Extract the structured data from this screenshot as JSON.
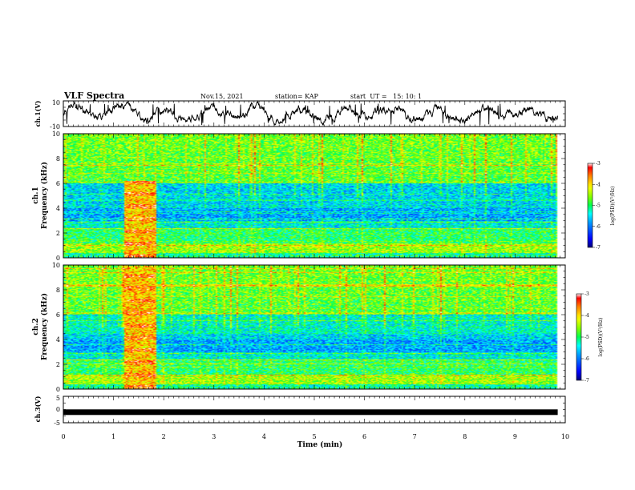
{
  "header": {
    "title": "VLF Spectra",
    "date": "Nov.15, 2021",
    "station": "station= KAP",
    "start": "start  UT =   15: 10: 1"
  },
  "chart_data": [
    {
      "type": "line",
      "panel": "ch1-waveform",
      "ylabel": "ch.1(V)",
      "ylim": [
        -10,
        10
      ],
      "yticks": [
        "10",
        "-10"
      ],
      "description_values": "noise waveform mostly between -6 and +6 V"
    },
    {
      "type": "heatmap",
      "panel": "ch1-spectrogram",
      "ylabel_line1": "ch.1",
      "ylabel_line2": "Frequency (kHz)",
      "ylim": [
        0,
        10
      ],
      "yticks": [
        "0",
        "2",
        "4",
        "6",
        "8",
        "10"
      ],
      "colorbar": {
        "label": "log(PSD)(V²/Hz)",
        "range": [
          -7,
          -3
        ],
        "ticks": [
          "-3",
          "-4",
          "-5",
          "-6",
          "-7"
        ]
      },
      "burst_minutes": [
        1.2,
        1.85
      ],
      "burst_top_khz": 6.2
    },
    {
      "type": "heatmap",
      "panel": "ch2-spectrogram",
      "ylabel_line1": "ch.2",
      "ylabel_line2": "Frequency (kHz)",
      "ylim": [
        0,
        10
      ],
      "yticks": [
        "0",
        "2",
        "4",
        "6",
        "8",
        "10"
      ],
      "colorbar": {
        "label": "log(PSD)(V²/Hz)",
        "range": [
          -7,
          -3
        ],
        "ticks": [
          "-3",
          "-4",
          "-5",
          "-6",
          "-7"
        ]
      },
      "burst_minutes": [
        1.2,
        1.85
      ],
      "burst_top_khz": 10
    },
    {
      "type": "line",
      "panel": "ch3-waveform",
      "ylabel": "ch.3(V)",
      "ylim": [
        -5,
        5
      ],
      "yticks": [
        "5",
        "0",
        "-5"
      ],
      "constant_value": -1
    }
  ],
  "xaxis": {
    "label": "Time (min)",
    "range": [
      0,
      10
    ],
    "ticks": [
      "0",
      "1",
      "2",
      "3",
      "4",
      "5",
      "6",
      "7",
      "8",
      "9",
      "10"
    ]
  },
  "colors": {
    "line": "#000000",
    "colormap": [
      "#00008f",
      "#0000ff",
      "#00a0ff",
      "#00ffff",
      "#00ff40",
      "#80ff00",
      "#ffff00",
      "#ff8000",
      "#ff0000",
      "#ffffff"
    ]
  }
}
